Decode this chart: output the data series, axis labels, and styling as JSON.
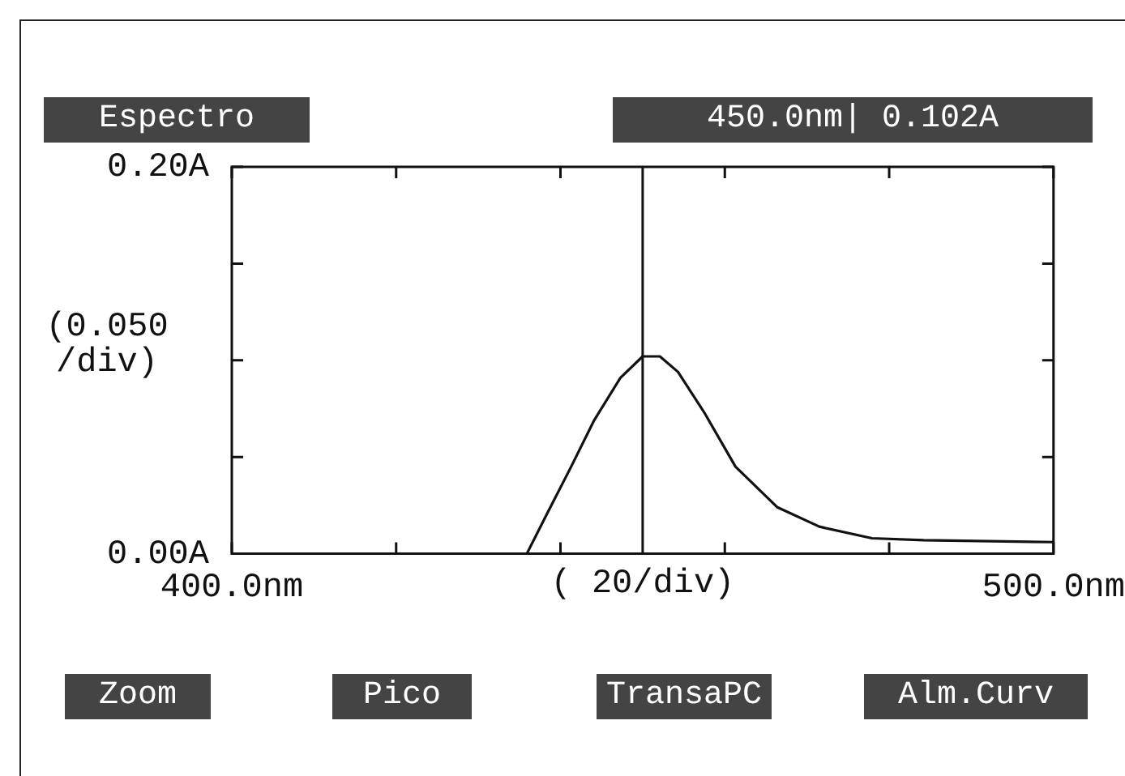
{
  "chart_data": {
    "type": "line",
    "title": "Espectro",
    "ylabel": "(0.050 /div)",
    "xlabel": "( 20/div)",
    "annotations": [
      "450.0nm| 0.102A",
      "Zoom",
      "Pico",
      "TransaPC",
      "Alm.Curv"
    ],
    "x": [
      435.9,
      438.4,
      441.3,
      444.1,
      447.3,
      450,
      452.1,
      454.3,
      457.5,
      461.3,
      466.4,
      471.5,
      477.9,
      484.2,
      500
    ],
    "series": [
      {
        "color": "#111111",
        "values": [
          0,
          0.021,
          0.045,
          0.069,
          0.091,
          0.102,
          0.102,
          0.094,
          0.073,
          0.045,
          0.024,
          0.014,
          0.008,
          0.007,
          0.006
        ]
      }
    ],
    "xlim": [
      400,
      500
    ],
    "xticks": [
      {
        "value": 400,
        "label": "400.0nm"
      },
      {
        "value": 420,
        "label": null
      },
      {
        "value": 440,
        "label": null
      },
      {
        "value": 460,
        "label": null
      },
      {
        "value": 480,
        "label": null
      },
      {
        "value": 500,
        "label": "500.0nm"
      }
    ],
    "ylim": [
      0,
      0.2
    ],
    "yticks": [
      {
        "value": 0,
        "label": "0.00A"
      },
      {
        "value": 0.05,
        "label": null
      },
      {
        "value": 0.1,
        "label": null
      },
      {
        "value": 0.15,
        "label": null
      },
      {
        "value": 0.2,
        "label": "0.20A"
      }
    ],
    "ref_lines": [
      {
        "axis": "x",
        "value": 450,
        "color": "#111111"
      }
    ],
    "marker": "none",
    "line_style": "solid",
    "legend": false
  }
}
